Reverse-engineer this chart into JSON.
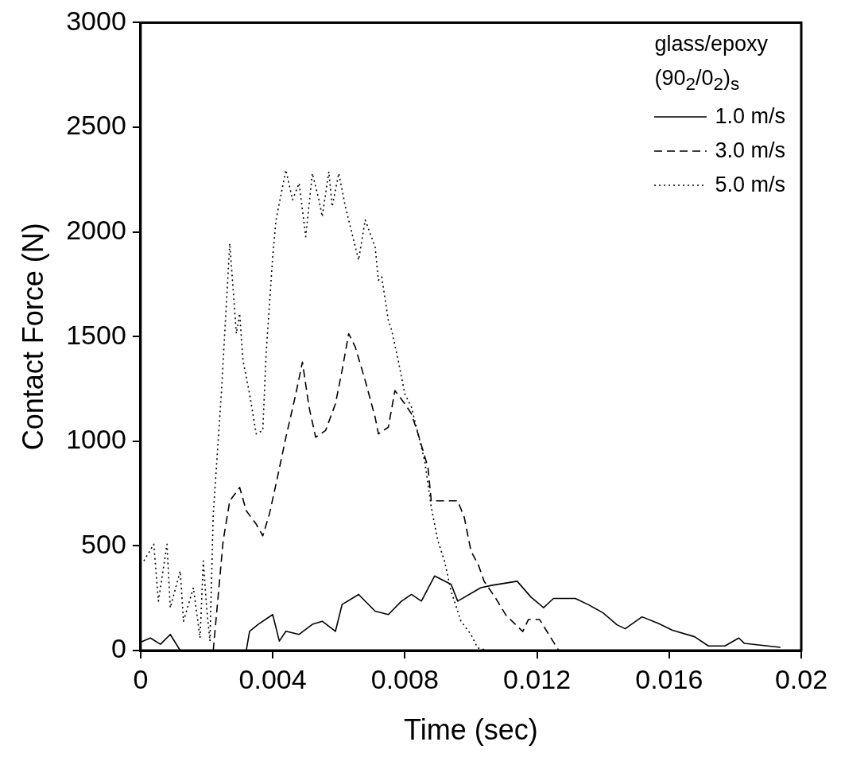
{
  "chart_data": {
    "type": "line",
    "xlabel": "Time (sec)",
    "ylabel": "Contact Force (N)",
    "legend_title": "glass/epoxy",
    "annotations": [
      "(90$_{2}$/0$_{2}$)$_{s}$"
    ],
    "xlim": [
      0,
      0.02
    ],
    "ylim": [
      0,
      3000
    ],
    "xticks": [
      0,
      0.004,
      0.008,
      0.012,
      0.016,
      0.02
    ],
    "yticks": [
      0,
      500,
      1000,
      1500,
      2000,
      2500,
      3000
    ],
    "grid": false,
    "legend": "top right",
    "marker": "none",
    "series": [
      {
        "name": "1.0 m/s",
        "color": "#000000",
        "line_style": "solid",
        "x": [
          0,
          0.0003,
          0.0006,
          0.0009,
          0.0012,
          0.0032,
          0.0033,
          0.00356,
          0.004,
          0.0042,
          0.0044,
          0.0048,
          0.0052,
          0.0055,
          0.0059,
          0.0061,
          0.0066,
          0.0071,
          0.0075,
          0.0079,
          0.0082,
          0.0085,
          0.0089,
          0.0094,
          0.0096,
          0.0103,
          0.01065,
          0.0114,
          0.01182,
          0.0122,
          0.0125,
          0.01316,
          0.01358,
          0.014,
          0.01442,
          0.01467,
          0.01518,
          0.01568,
          0.0161,
          0.01677,
          0.01719,
          0.01769,
          0.01811,
          0.01828,
          0.01937
        ],
        "values": [
          40,
          60,
          30,
          77,
          0,
          0,
          92,
          125,
          172,
          45,
          92,
          77,
          125,
          140,
          92,
          220,
          268,
          188,
          172,
          236,
          268,
          236,
          356,
          316,
          236,
          300,
          312,
          331,
          255,
          205,
          249,
          249,
          217,
          180,
          123,
          104,
          161,
          129,
          97,
          66,
          22,
          22,
          60,
          34,
          15
        ]
      },
      {
        "name": "3.0 m/s",
        "color": "#000000",
        "line_style": "dashed",
        "x": [
          0.0022,
          0.0025,
          0.0027,
          0.003,
          0.0032,
          0.0035,
          0.0037,
          0.0039,
          0.0041,
          0.0044,
          0.0047,
          0.0049,
          0.0051,
          0.0053,
          0.0056,
          0.0059,
          0.0061,
          0.0063,
          0.0065,
          0.0068,
          0.0071,
          0.0072,
          0.0075,
          0.0077,
          0.008,
          0.0082,
          0.0084,
          0.0087,
          0.0088,
          0.0093,
          0.0096,
          0.0098,
          0.01,
          0.01023,
          0.0104,
          0.01073,
          0.01107,
          0.01157,
          0.01174,
          0.01208,
          0.0124,
          0.01266
        ],
        "values": [
          0,
          524,
          715,
          779,
          668,
          604,
          548,
          652,
          795,
          1019,
          1226,
          1378,
          1163,
          1019,
          1051,
          1179,
          1338,
          1514,
          1450,
          1290,
          1115,
          1035,
          1067,
          1242,
          1179,
          1131,
          1035,
          875,
          715,
          715,
          715,
          636,
          476,
          407,
          331,
          255,
          167,
          91,
          148,
          148,
          66,
          0
        ]
      },
      {
        "name": "5.0 m/s",
        "color": "#000000",
        "line_style": "dotted",
        "x": [
          0.0001,
          0.0004,
          0.00054,
          0.0008,
          0.0009,
          0.0012,
          0.0013,
          0.0016,
          0.0018,
          0.0019,
          0.002,
          0.0021,
          0.0022,
          0.00245,
          0.0027,
          0.0029,
          0.003,
          0.0031,
          0.0033,
          0.0035,
          0.0037,
          0.0038,
          0.004,
          0.0041,
          0.0044,
          0.0046,
          0.0048,
          0.005,
          0.0052,
          0.0054,
          0.0055,
          0.0057,
          0.0058,
          0.006,
          0.0062,
          0.0064,
          0.0066,
          0.0068,
          0.0071,
          0.0072,
          0.0073,
          0.0075,
          0.0076,
          0.0078,
          0.008,
          0.0082,
          0.0084,
          0.0086,
          0.0088,
          0.009,
          0.0092,
          0.0094,
          0.0097,
          0.01,
          0.0102,
          0.0105
        ],
        "values": [
          428,
          508,
          236,
          508,
          204,
          380,
          140,
          300,
          60,
          428,
          204,
          45,
          650,
          1240,
          1945,
          1514,
          1610,
          1386,
          1226,
          1035,
          1051,
          1418,
          1881,
          2057,
          2296,
          2153,
          2233,
          1977,
          2280,
          2153,
          2073,
          2288,
          2121,
          2280,
          2121,
          1993,
          1865,
          2057,
          1929,
          1769,
          1785,
          1578,
          1530,
          1386,
          1226,
          1163,
          1035,
          907,
          684,
          524,
          428,
          284,
          140,
          77,
          13,
          0
        ]
      }
    ]
  }
}
